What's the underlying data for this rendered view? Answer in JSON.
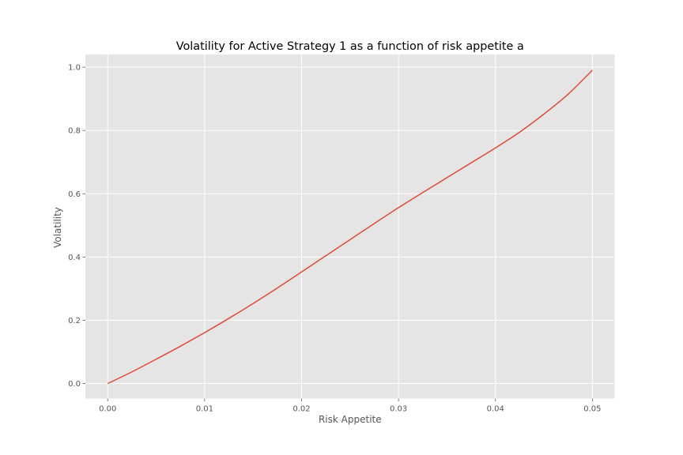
{
  "chart_data": {
    "type": "line",
    "title": "Volatility for Active Strategy 1 as a function of risk appetite a",
    "xlabel": "Risk Appetite",
    "ylabel": "Volatility",
    "xlim": [
      -0.0023,
      0.0523
    ],
    "ylim": [
      -0.0475,
      1.04
    ],
    "xticks": [
      0.0,
      0.01,
      0.02,
      0.03,
      0.04,
      0.05
    ],
    "xtick_labels": [
      "0.00",
      "0.01",
      "0.02",
      "0.03",
      "0.04",
      "0.05"
    ],
    "yticks": [
      0.0,
      0.2,
      0.4,
      0.6,
      0.8,
      1.0
    ],
    "ytick_labels": [
      "0.0",
      "0.2",
      "0.4",
      "0.6",
      "0.8",
      "1.0"
    ],
    "grid": true,
    "colors": {
      "background": "#e5e5e5",
      "grid": "#ffffff",
      "line": "#e24a33"
    },
    "series": [
      {
        "x": [
          0.0,
          0.0025,
          0.005,
          0.0075,
          0.01,
          0.0125,
          0.015,
          0.0175,
          0.02,
          0.0225,
          0.025,
          0.0275,
          0.03,
          0.0325,
          0.035,
          0.0375,
          0.04,
          0.0425,
          0.045,
          0.0475,
          0.05
        ],
        "values": [
          0.0,
          0.037,
          0.077,
          0.118,
          0.161,
          0.206,
          0.253,
          0.302,
          0.353,
          0.404,
          0.455,
          0.506,
          0.556,
          0.604,
          0.651,
          0.698,
          0.745,
          0.795,
          0.852,
          0.915,
          0.991
        ]
      }
    ]
  }
}
